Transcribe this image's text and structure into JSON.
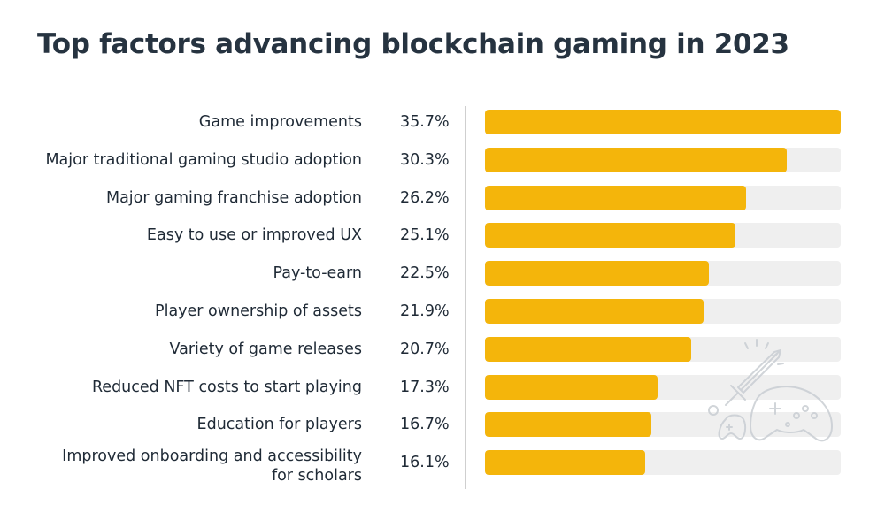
{
  "title": "Top factors advancing blockchain gaming in 2023",
  "colors": {
    "bar": "#f4b50b",
    "track": "#efefef",
    "text": "#1f2a36"
  },
  "decoration_icon": "sword-and-gamepad-icon",
  "chart_data": {
    "type": "bar",
    "orientation": "horizontal",
    "title": "Top factors advancing blockchain gaming in 2023",
    "xlim": [
      0,
      35.7
    ],
    "categories": [
      "Game improvements",
      "Major traditional gaming studio adoption",
      "Major gaming franchise adoption",
      "Easy to use or improved UX",
      "Pay-to-earn",
      "Player ownership of assets",
      "Variety of game releases",
      "Reduced NFT costs to start playing",
      "Education for players",
      "Improved onboarding and accessibility for scholars"
    ],
    "values": [
      35.7,
      30.3,
      26.2,
      25.1,
      22.5,
      21.9,
      20.7,
      17.3,
      16.7,
      16.1
    ],
    "value_labels": [
      "35.7%",
      "30.3%",
      "26.2%",
      "25.1%",
      "22.5%",
      "21.9%",
      "20.7%",
      "17.3%",
      "16.7%",
      "16.1%"
    ]
  }
}
